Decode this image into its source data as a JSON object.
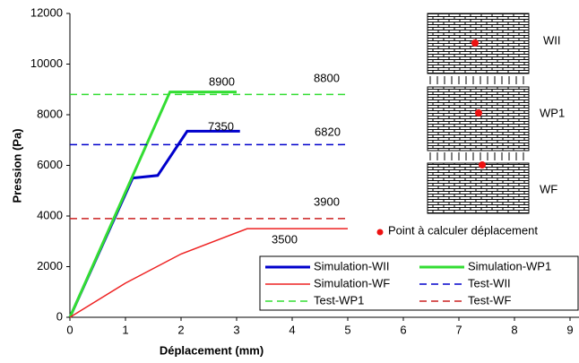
{
  "chart_data": {
    "type": "line",
    "x_label": "Déplacement (mm)",
    "y_label": "Pression (Pa)",
    "xlim": [
      0,
      9
    ],
    "ylim": [
      0,
      12000
    ],
    "xticks": [
      0,
      1,
      2,
      3,
      4,
      5,
      6,
      7,
      8,
      9
    ],
    "yticks": [
      0,
      2000,
      4000,
      6000,
      8000,
      10000,
      12000
    ],
    "series": [
      {
        "name": "Simulation-WII",
        "color": "#0000cc",
        "style": "solid",
        "width": 3,
        "x": [
          0,
          1.13,
          1.58,
          2.11,
          3.06
        ],
        "values": [
          0,
          5500,
          5600,
          7350,
          7350
        ]
      },
      {
        "name": "Simulation-WP1",
        "color": "#33dd33",
        "style": "solid",
        "width": 3,
        "x": [
          0,
          1.8,
          3.0
        ],
        "values": [
          0,
          8900,
          8900
        ]
      },
      {
        "name": "Simulation-WF",
        "color": "#ee2222",
        "style": "solid",
        "width": 1.5,
        "x": [
          0,
          1.0,
          2.0,
          3.19,
          5.0
        ],
        "values": [
          0,
          1350,
          2500,
          3500,
          3500
        ]
      },
      {
        "name": "Test-WII",
        "color": "#0000cc",
        "style": "dashed",
        "width": 1.5,
        "x": [
          0,
          5.0
        ],
        "values": [
          6820,
          6820
        ]
      },
      {
        "name": "Test-WP1",
        "color": "#33dd33",
        "style": "dashed",
        "width": 1.5,
        "x": [
          0,
          5.0
        ],
        "values": [
          8800,
          8800
        ]
      },
      {
        "name": "Test-WF",
        "color": "#cc2222",
        "style": "dashed",
        "width": 1.5,
        "x": [
          0,
          5.0
        ],
        "values": [
          3900,
          3900
        ]
      }
    ],
    "annotations": [
      {
        "text": "8900",
        "color": "#33dd33"
      },
      {
        "text": "7350",
        "color": "#0000cc"
      },
      {
        "text": "6820",
        "color": "#0000cc"
      },
      {
        "text": "8800",
        "color": "#33dd33"
      },
      {
        "text": "3900",
        "color": "#ee2222"
      },
      {
        "text": "3500",
        "color": "#ee2222"
      }
    ],
    "panels": [
      "WII",
      "WP1",
      "WF"
    ],
    "point_legend": "Point à calculer déplacement"
  }
}
